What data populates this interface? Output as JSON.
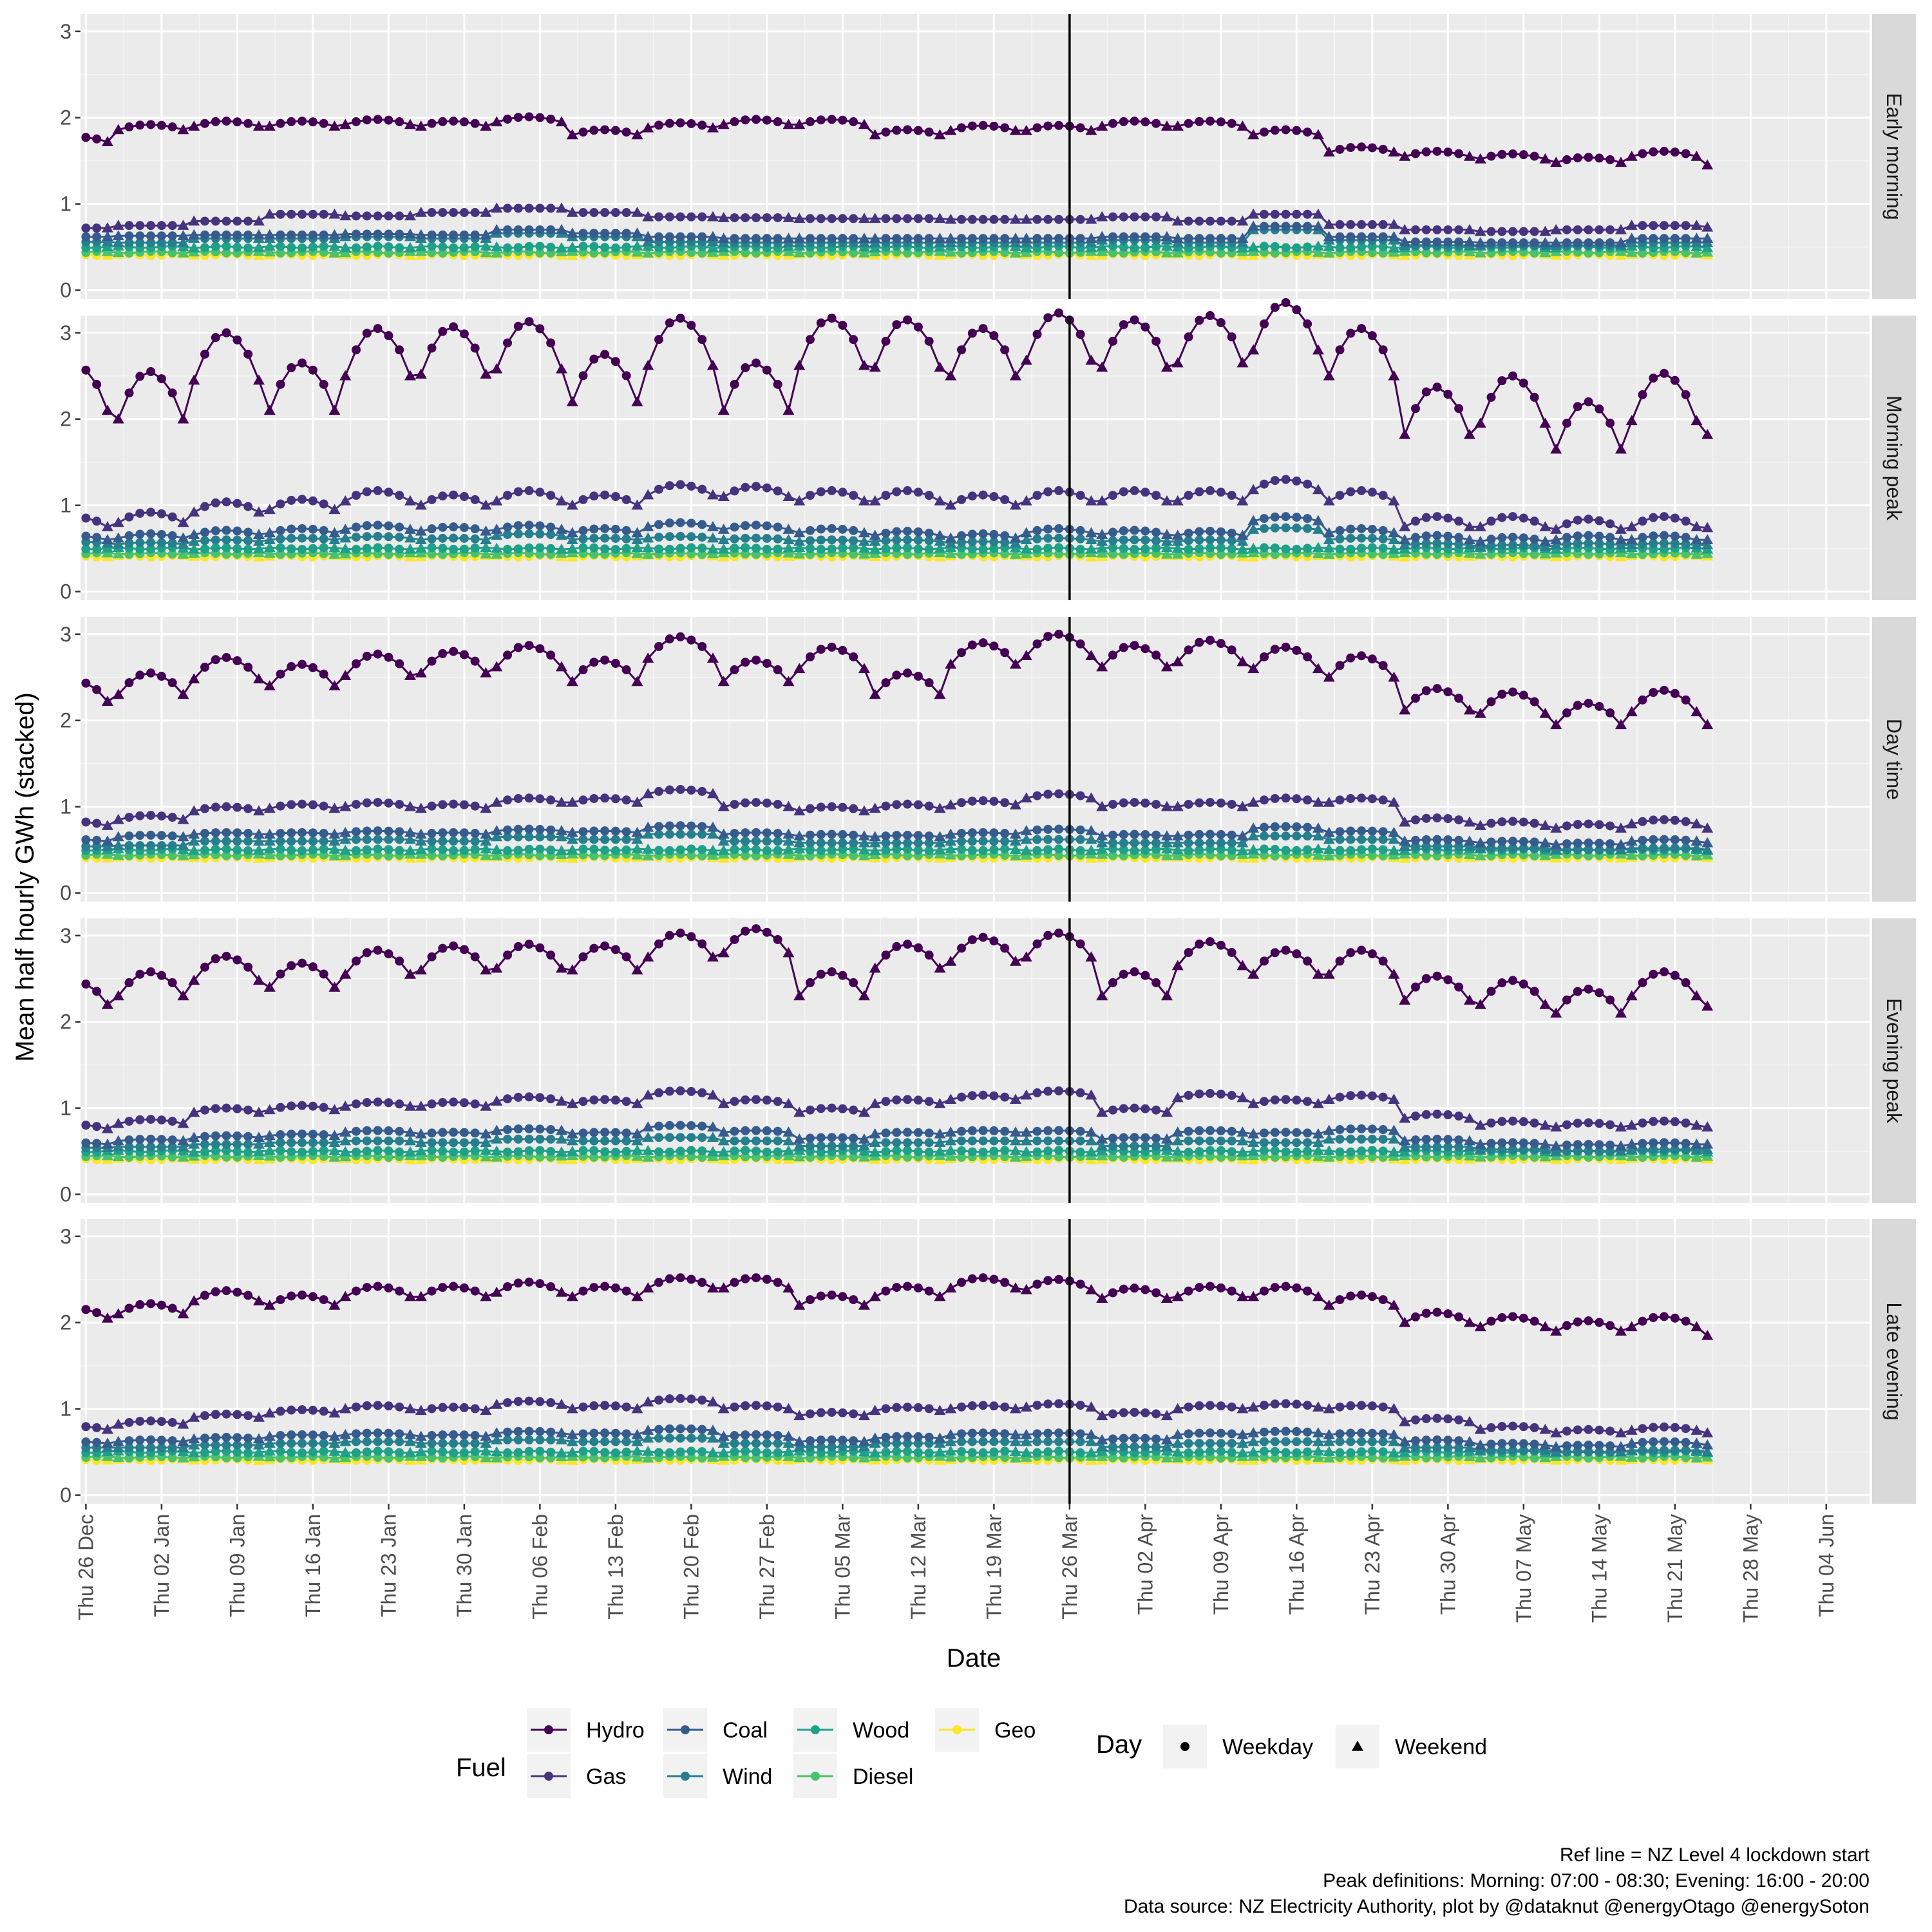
{
  "chart_data": {
    "type": "line",
    "xlabel": "Date",
    "ylabel": "Mean half hourly GWh (stacked)",
    "x_ticks": [
      "Thu 26 Dec",
      "Thu 02 Jan",
      "Thu 09 Jan",
      "Thu 16 Jan",
      "Thu 23 Jan",
      "Thu 30 Jan",
      "Thu 06 Feb",
      "Thu 13 Feb",
      "Thu 20 Feb",
      "Thu 27 Feb",
      "Thu 05 Mar",
      "Thu 12 Mar",
      "Thu 19 Mar",
      "Thu 26 Mar",
      "Thu 02 Apr",
      "Thu 09 Apr",
      "Thu 16 Apr",
      "Thu 23 Apr",
      "Thu 30 Apr",
      "Thu 07 May",
      "Thu 14 May",
      "Thu 21 May",
      "Thu 28 May",
      "Thu 04 Jun"
    ],
    "x_ticks_day_offsets": [
      0,
      7,
      14,
      21,
      28,
      35,
      42,
      49,
      56,
      63,
      70,
      77,
      84,
      91,
      98,
      105,
      112,
      119,
      126,
      133,
      140,
      147,
      154,
      161
    ],
    "x_range_days": [
      -0.5,
      165
    ],
    "first_data_date": "Thu 02 Jan",
    "data_days": 151,
    "weekend_days": "Sat, Sun",
    "y_ticks": [
      "0",
      "1",
      "2",
      "3"
    ],
    "ylim": [
      -0.1,
      3.2
    ],
    "grid": true,
    "reference_line": {
      "date": "Thu 26 Mar",
      "day_offset": 91,
      "label": "Ref line = NZ Level 4 lockdown start"
    },
    "panels": [
      "Early morning",
      "Morning peak",
      "Day time",
      "Evening peak",
      "Late evening"
    ],
    "fuels": [
      {
        "name": "Hydro",
        "color": "#440154"
      },
      {
        "name": "Gas",
        "color": "#46337e"
      },
      {
        "name": "Coal",
        "color": "#365c8d"
      },
      {
        "name": "Wind",
        "color": "#277f8e"
      },
      {
        "name": "Wood",
        "color": "#1fa187"
      },
      {
        "name": "Diesel",
        "color": "#4ac16d"
      },
      {
        "name": "Geo",
        "color": "#fde725"
      }
    ],
    "series_profiles": {
      "Early morning": {
        "Hydro": {
          "we": [
            1.72,
            1.86,
            1.9,
            1.9,
            1.92,
            1.9,
            1.95,
            1.8,
            1.88,
            1.92,
            1.92,
            1.8,
            1.85,
            1.85,
            1.9,
            1.9,
            1.8,
            1.6,
            1.55,
            1.52,
            1.48,
            1.55,
            1.45,
            1.6,
            1.5,
            1.58,
            1.52,
            1.75,
            1.85,
            1.78,
            1.85,
            1.88,
            1.92,
            2.02,
            1.88,
            1.95,
            1.88
          ],
          "d": -0.06
        },
        "Gas": {
          "we": [
            0.72,
            0.75,
            0.8,
            0.88,
            0.86,
            0.9,
            0.95,
            0.9,
            0.85,
            0.84,
            0.83,
            0.83,
            0.82,
            0.82,
            0.85,
            0.8,
            0.88,
            0.76,
            0.7,
            0.68,
            0.7,
            0.75,
            0.73,
            0.78,
            0.72,
            0.75,
            0.72,
            0.88,
            0.82,
            0.75,
            0.78,
            0.8,
            0.82,
            0.95,
            0.85,
            0.92,
            0.88
          ],
          "d": 0.0
        },
        "Coal": {
          "we": [
            0.62,
            0.63,
            0.64,
            0.64,
            0.65,
            0.64,
            0.7,
            0.66,
            0.62,
            0.6,
            0.6,
            0.6,
            0.6,
            0.6,
            0.62,
            0.6,
            0.74,
            0.62,
            0.56,
            0.55,
            0.55,
            0.6,
            0.6,
            0.62,
            0.6,
            0.62,
            0.6,
            0.7,
            0.62,
            0.6,
            0.62,
            0.62,
            0.64,
            0.7,
            0.66,
            0.66,
            0.64
          ],
          "d": 0.0
        },
        "Wind": {
          "we": [
            0.56,
            0.55,
            0.6,
            0.6,
            0.62,
            0.6,
            0.66,
            0.62,
            0.56,
            0.55,
            0.55,
            0.55,
            0.55,
            0.55,
            0.58,
            0.55,
            0.7,
            0.58,
            0.52,
            0.52,
            0.52,
            0.55,
            0.55,
            0.58,
            0.55,
            0.58,
            0.55,
            0.65,
            0.58,
            0.55,
            0.56,
            0.56,
            0.58,
            0.65,
            0.6,
            0.6,
            0.58
          ],
          "d": 0.0
        }
      },
      "Morning peak": {
        "Hydro": {
          "we": [
            2.1,
            2.0,
            2.45,
            2.1,
            2.5,
            2.52,
            2.58,
            2.2,
            2.62,
            2.1,
            2.62,
            2.6,
            2.5,
            2.68,
            2.6,
            2.65,
            2.8,
            2.5,
            1.82,
            1.95,
            1.65,
            1.98,
            1.82,
            1.7,
            2.1,
            1.75,
            2.05,
            1.8,
            2.4,
            1.85,
            2.6,
            2.2,
            2.6,
            2.2,
            3.0,
            2.1,
            2.98
          ],
          "d": -0.55
        },
        "Gas": {
          "we": [
            0.75,
            0.8,
            0.92,
            0.95,
            1.05,
            1.0,
            1.05,
            1.0,
            1.12,
            1.1,
            1.05,
            1.05,
            1.0,
            1.05,
            1.05,
            1.05,
            1.18,
            1.05,
            0.75,
            0.75,
            0.72,
            0.75,
            0.74,
            0.75,
            0.8,
            0.78,
            0.8,
            0.82,
            0.98,
            0.88,
            0.98,
            0.95,
            0.98,
            1.05,
            1.22,
            1.0,
            1.15
          ],
          "d": -0.12
        },
        "Coal": {
          "we": [
            0.6,
            0.62,
            0.66,
            0.68,
            0.72,
            0.7,
            0.72,
            0.68,
            0.75,
            0.72,
            0.68,
            0.65,
            0.62,
            0.68,
            0.66,
            0.65,
            0.82,
            0.68,
            0.6,
            0.58,
            0.6,
            0.6,
            0.6,
            0.6,
            0.65,
            0.62,
            0.62,
            0.62,
            0.68,
            0.6,
            0.66,
            0.62,
            0.62,
            0.72,
            0.82,
            0.7,
            0.8
          ],
          "d": -0.05
        },
        "Wind": {
          "we": [
            0.56,
            0.55,
            0.58,
            0.6,
            0.62,
            0.6,
            0.65,
            0.6,
            0.62,
            0.6,
            0.58,
            0.58,
            0.56,
            0.6,
            0.58,
            0.58,
            0.72,
            0.6,
            0.54,
            0.52,
            0.54,
            0.54,
            0.54,
            0.55,
            0.58,
            0.55,
            0.56,
            0.56,
            0.6,
            0.55,
            0.58,
            0.55,
            0.56,
            0.62,
            0.7,
            0.6,
            0.66
          ],
          "d": -0.02
        }
      },
      "Day time": {
        "Hydro": {
          "we": [
            2.22,
            2.3,
            2.48,
            2.4,
            2.52,
            2.55,
            2.62,
            2.45,
            2.72,
            2.45,
            2.6,
            2.3,
            2.65,
            2.75,
            2.62,
            2.68,
            2.6,
            2.5,
            2.12,
            2.08,
            1.95,
            2.1,
            1.95,
            2.18,
            2.05,
            2.15,
            2.05,
            2.35,
            2.5,
            2.6,
            2.55,
            2.6,
            2.65,
            2.7,
            2.65,
            2.7,
            2.6
          ],
          "d": -0.25
        },
        "Gas": {
          "we": [
            0.78,
            0.85,
            0.95,
            0.98,
            1.0,
            0.98,
            1.05,
            1.05,
            1.15,
            1.0,
            0.95,
            0.98,
            1.02,
            1.1,
            1.0,
            1.0,
            1.05,
            1.05,
            0.82,
            0.78,
            0.75,
            0.8,
            0.75,
            0.85,
            0.82,
            0.85,
            0.8,
            0.95,
            0.95,
            0.92,
            0.95,
            0.95,
            0.95,
            1.05,
            1.0,
            1.02,
            1.02
          ],
          "d": -0.05
        },
        "Coal": {
          "we": [
            0.6,
            0.65,
            0.68,
            0.68,
            0.7,
            0.68,
            0.72,
            0.7,
            0.76,
            0.68,
            0.66,
            0.65,
            0.68,
            0.72,
            0.66,
            0.66,
            0.75,
            0.7,
            0.6,
            0.58,
            0.56,
            0.6,
            0.58,
            0.62,
            0.6,
            0.62,
            0.6,
            0.72,
            0.66,
            0.62,
            0.64,
            0.66,
            0.66,
            0.75,
            0.7,
            0.7,
            0.68
          ],
          "d": -0.02
        },
        "Wind": {
          "we": [
            0.54,
            0.55,
            0.6,
            0.6,
            0.62,
            0.6,
            0.65,
            0.62,
            0.68,
            0.6,
            0.58,
            0.58,
            0.6,
            0.62,
            0.58,
            0.58,
            0.66,
            0.62,
            0.54,
            0.52,
            0.5,
            0.52,
            0.5,
            0.56,
            0.54,
            0.56,
            0.55,
            0.65,
            0.58,
            0.56,
            0.58,
            0.58,
            0.58,
            0.66,
            0.62,
            0.62,
            0.6
          ],
          "d": 0.0
        }
      },
      "Evening peak": {
        "Hydro": {
          "we": [
            2.2,
            2.3,
            2.48,
            2.4,
            2.55,
            2.6,
            2.62,
            2.6,
            2.75,
            2.8,
            2.3,
            2.62,
            2.7,
            2.75,
            2.3,
            2.65,
            2.55,
            2.55,
            2.25,
            2.2,
            2.1,
            2.3,
            2.18,
            2.45,
            2.25,
            2.4,
            2.25,
            2.55,
            2.6,
            2.85,
            2.55,
            2.8,
            2.6,
            2.95,
            2.8,
            2.95,
            2.9
          ],
          "d": -0.28
        },
        "Gas": {
          "we": [
            0.76,
            0.82,
            0.95,
            0.98,
            1.02,
            1.02,
            1.08,
            1.05,
            1.15,
            1.05,
            0.95,
            1.05,
            1.1,
            1.15,
            0.95,
            1.12,
            1.05,
            1.1,
            0.88,
            0.8,
            0.78,
            0.8,
            0.78,
            0.85,
            0.85,
            0.85,
            0.82,
            1.05,
            0.98,
            0.95,
            0.98,
            0.98,
            1.0,
            1.15,
            1.1,
            1.1,
            1.08
          ],
          "d": -0.05
        },
        "Coal": {
          "we": [
            0.58,
            0.62,
            0.66,
            0.68,
            0.72,
            0.7,
            0.74,
            0.7,
            0.78,
            0.72,
            0.64,
            0.7,
            0.72,
            0.72,
            0.64,
            0.72,
            0.7,
            0.74,
            0.62,
            0.58,
            0.56,
            0.58,
            0.58,
            0.62,
            0.62,
            0.62,
            0.6,
            0.75,
            0.68,
            0.66,
            0.68,
            0.66,
            0.68,
            0.82,
            0.72,
            0.76,
            0.72
          ],
          "d": -0.02
        },
        "Wind": {
          "we": [
            0.54,
            0.55,
            0.58,
            0.6,
            0.62,
            0.6,
            0.64,
            0.62,
            0.66,
            0.62,
            0.56,
            0.6,
            0.62,
            0.62,
            0.56,
            0.62,
            0.6,
            0.64,
            0.55,
            0.52,
            0.5,
            0.52,
            0.52,
            0.56,
            0.55,
            0.56,
            0.55,
            0.66,
            0.6,
            0.58,
            0.6,
            0.58,
            0.6,
            0.72,
            0.64,
            0.66,
            0.64
          ],
          "d": 0.0
        }
      },
      "Late evening": {
        "Hydro": {
          "we": [
            2.05,
            2.1,
            2.25,
            2.2,
            2.3,
            2.3,
            2.35,
            2.3,
            2.4,
            2.4,
            2.2,
            2.3,
            2.4,
            2.38,
            2.28,
            2.3,
            2.3,
            2.2,
            2.0,
            1.95,
            1.9,
            1.95,
            1.85,
            2.05,
            1.95,
            2.0,
            1.92,
            2.15,
            2.2,
            2.35,
            2.25,
            2.35,
            2.3,
            2.55,
            2.4,
            2.5,
            2.3
          ],
          "d": -0.12
        },
        "Gas": {
          "we": [
            0.76,
            0.82,
            0.9,
            0.95,
            1.0,
            0.98,
            1.05,
            1.0,
            1.08,
            1.0,
            0.92,
            0.98,
            1.0,
            1.02,
            0.92,
            1.0,
            1.02,
            1.0,
            0.85,
            0.76,
            0.72,
            0.75,
            0.72,
            0.82,
            0.8,
            0.82,
            0.78,
            0.98,
            0.9,
            0.88,
            0.88,
            0.9,
            0.95,
            1.05,
            1.1,
            1.02,
            1.05
          ],
          "d": -0.04
        },
        "Coal": {
          "we": [
            0.6,
            0.62,
            0.65,
            0.68,
            0.7,
            0.68,
            0.72,
            0.7,
            0.75,
            0.68,
            0.62,
            0.66,
            0.7,
            0.7,
            0.64,
            0.7,
            0.72,
            0.7,
            0.62,
            0.58,
            0.56,
            0.6,
            0.58,
            0.62,
            0.62,
            0.62,
            0.6,
            0.74,
            0.68,
            0.64,
            0.66,
            0.66,
            0.68,
            0.75,
            0.72,
            0.72,
            0.7
          ],
          "d": -0.02
        },
        "Wind": {
          "we": [
            0.55,
            0.55,
            0.58,
            0.6,
            0.62,
            0.6,
            0.64,
            0.62,
            0.66,
            0.6,
            0.56,
            0.6,
            0.62,
            0.62,
            0.56,
            0.6,
            0.62,
            0.62,
            0.55,
            0.52,
            0.5,
            0.52,
            0.5,
            0.56,
            0.55,
            0.56,
            0.54,
            0.65,
            0.6,
            0.56,
            0.58,
            0.58,
            0.6,
            0.66,
            0.62,
            0.62,
            0.6
          ],
          "d": 0.0
        }
      }
    },
    "lower_bands": {
      "Wood": 0.5,
      "Diesel": 0.44,
      "Geo": 0.41
    }
  },
  "legend": {
    "fuel_title": "Fuel",
    "fuels": [
      "Hydro",
      "Gas",
      "Coal",
      "Wind",
      "Wood",
      "Diesel",
      "Geo"
    ],
    "day_title": "Day",
    "days": [
      "Weekday",
      "Weekend"
    ]
  },
  "caption": {
    "line1": "Ref line = NZ Level 4 lockdown start",
    "line2": "Peak definitions: Morning: 07:00 - 08:30; Evening: 16:00 - 20:00",
    "line3": "Data source: NZ Electricity Authority, plot by @dataknut @energyOtago @energySoton"
  }
}
